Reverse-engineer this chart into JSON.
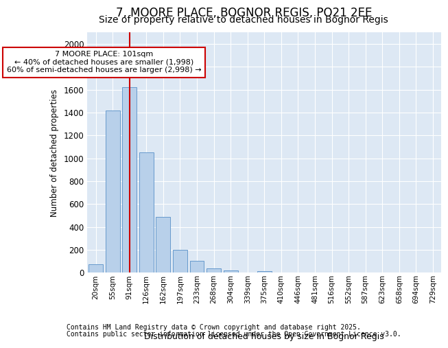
{
  "title1": "7, MOORE PLACE, BOGNOR REGIS, PO21 2EE",
  "title2": "Size of property relative to detached houses in Bognor Regis",
  "xlabel": "Distribution of detached houses by size in Bognor Regis",
  "ylabel": "Number of detached properties",
  "categories": [
    "20sqm",
    "55sqm",
    "91sqm",
    "126sqm",
    "162sqm",
    "197sqm",
    "233sqm",
    "268sqm",
    "304sqm",
    "339sqm",
    "375sqm",
    "410sqm",
    "446sqm",
    "481sqm",
    "516sqm",
    "552sqm",
    "587sqm",
    "623sqm",
    "658sqm",
    "694sqm",
    "729sqm"
  ],
  "values": [
    75,
    1420,
    1625,
    1050,
    490,
    200,
    105,
    40,
    20,
    0,
    15,
    0,
    0,
    0,
    0,
    0,
    0,
    0,
    0,
    0,
    0
  ],
  "bar_color": "#b8d0ea",
  "bar_edge_color": "#6699cc",
  "annotation_text": "7 MOORE PLACE: 101sqm\n← 40% of detached houses are smaller (1,998)\n60% of semi-detached houses are larger (2,998) →",
  "vline_x": 2,
  "vline_color": "#cc0000",
  "annotation_box_color": "#cc0000",
  "ylim": [
    0,
    2100
  ],
  "yticks": [
    0,
    200,
    400,
    600,
    800,
    1000,
    1200,
    1400,
    1600,
    1800,
    2000
  ],
  "bg_color": "#ffffff",
  "plot_bg_color": "#dde8f4",
  "grid_color": "#ffffff",
  "footer1": "Contains HM Land Registry data © Crown copyright and database right 2025.",
  "footer2": "Contains public sector information licensed under the Open Government Licence v3.0.",
  "title1_fontsize": 12,
  "title2_fontsize": 10,
  "footer_fontsize": 7
}
